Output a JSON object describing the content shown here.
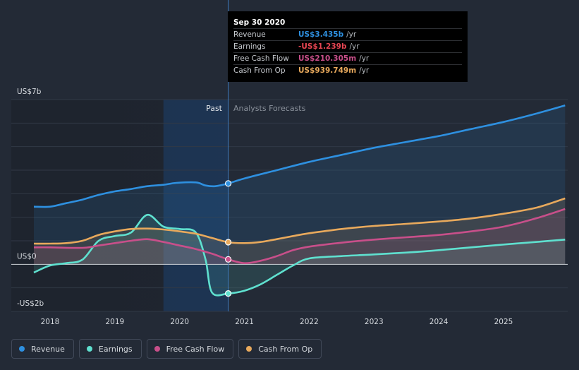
{
  "chart_data": {
    "type": "area",
    "x_unit": "year",
    "y_unit": "US$ billions",
    "ylim": [
      -2,
      7
    ],
    "y_ticks": [
      {
        "value": 7,
        "label": "US$7b"
      },
      {
        "value": 0,
        "label": "US$0"
      },
      {
        "value": -2,
        "label": "-US$2b"
      }
    ],
    "x_ticks": [
      "2018",
      "2019",
      "2020",
      "2021",
      "2022",
      "2023",
      "2024",
      "2025"
    ],
    "past_label": "Past",
    "forecast_label": "Analysts Forecasts",
    "divider_x": 2020.75,
    "highlight_start_x": 2019.75,
    "grid": "horizontal",
    "legend_position": "bottom",
    "series": [
      {
        "name": "Revenue",
        "color": "#2e90e0",
        "points": [
          [
            2017.75,
            2.45
          ],
          [
            2018.0,
            2.45
          ],
          [
            2018.25,
            2.6
          ],
          [
            2018.5,
            2.75
          ],
          [
            2018.75,
            2.95
          ],
          [
            2019.0,
            3.1
          ],
          [
            2019.25,
            3.2
          ],
          [
            2019.5,
            3.32
          ],
          [
            2019.75,
            3.38
          ],
          [
            2019.95,
            3.46
          ],
          [
            2020.25,
            3.48
          ],
          [
            2020.4,
            3.35
          ],
          [
            2020.55,
            3.32
          ],
          [
            2020.75,
            3.435
          ],
          [
            2021.0,
            3.65
          ],
          [
            2021.5,
            4.0
          ],
          [
            2022.0,
            4.35
          ],
          [
            2022.5,
            4.65
          ],
          [
            2023.0,
            4.95
          ],
          [
            2023.5,
            5.2
          ],
          [
            2024.0,
            5.45
          ],
          [
            2024.5,
            5.75
          ],
          [
            2025.0,
            6.05
          ],
          [
            2025.5,
            6.4
          ],
          [
            2025.95,
            6.75
          ]
        ]
      },
      {
        "name": "Earnings",
        "color": "#5fe0cf",
        "points": [
          [
            2017.75,
            -0.35
          ],
          [
            2018.0,
            -0.05
          ],
          [
            2018.25,
            0.05
          ],
          [
            2018.5,
            0.2
          ],
          [
            2018.75,
            1.0
          ],
          [
            2019.0,
            1.2
          ],
          [
            2019.25,
            1.35
          ],
          [
            2019.5,
            2.1
          ],
          [
            2019.75,
            1.6
          ],
          [
            2020.0,
            1.5
          ],
          [
            2020.25,
            1.35
          ],
          [
            2020.4,
            0.2
          ],
          [
            2020.5,
            -1.2
          ],
          [
            2020.75,
            -1.239
          ],
          [
            2021.0,
            -1.12
          ],
          [
            2021.25,
            -0.85
          ],
          [
            2021.5,
            -0.45
          ],
          [
            2021.75,
            -0.05
          ],
          [
            2022.0,
            0.25
          ],
          [
            2022.5,
            0.35
          ],
          [
            2023.0,
            0.42
          ],
          [
            2023.5,
            0.5
          ],
          [
            2024.0,
            0.6
          ],
          [
            2024.5,
            0.72
          ],
          [
            2025.0,
            0.84
          ],
          [
            2025.5,
            0.95
          ],
          [
            2025.95,
            1.05
          ]
        ]
      },
      {
        "name": "Free Cash Flow",
        "color": "#c84f8a",
        "points": [
          [
            2017.75,
            0.72
          ],
          [
            2018.0,
            0.72
          ],
          [
            2018.5,
            0.7
          ],
          [
            2018.75,
            0.8
          ],
          [
            2019.0,
            0.9
          ],
          [
            2019.25,
            1.0
          ],
          [
            2019.5,
            1.07
          ],
          [
            2019.75,
            0.95
          ],
          [
            2020.0,
            0.8
          ],
          [
            2020.25,
            0.65
          ],
          [
            2020.5,
            0.45
          ],
          [
            2020.75,
            0.21
          ],
          [
            2021.0,
            0.05
          ],
          [
            2021.25,
            0.15
          ],
          [
            2021.5,
            0.35
          ],
          [
            2021.75,
            0.6
          ],
          [
            2022.0,
            0.75
          ],
          [
            2022.5,
            0.92
          ],
          [
            2023.0,
            1.05
          ],
          [
            2023.5,
            1.15
          ],
          [
            2024.0,
            1.25
          ],
          [
            2024.5,
            1.4
          ],
          [
            2025.0,
            1.6
          ],
          [
            2025.5,
            1.95
          ],
          [
            2025.95,
            2.35
          ]
        ]
      },
      {
        "name": "Cash From Op",
        "color": "#e8a95c",
        "points": [
          [
            2017.75,
            0.88
          ],
          [
            2018.0,
            0.88
          ],
          [
            2018.25,
            0.9
          ],
          [
            2018.5,
            1.0
          ],
          [
            2018.75,
            1.25
          ],
          [
            2019.0,
            1.4
          ],
          [
            2019.25,
            1.5
          ],
          [
            2019.5,
            1.52
          ],
          [
            2019.75,
            1.48
          ],
          [
            2020.0,
            1.4
          ],
          [
            2020.25,
            1.3
          ],
          [
            2020.5,
            1.12
          ],
          [
            2020.75,
            0.94
          ],
          [
            2021.0,
            0.9
          ],
          [
            2021.25,
            0.95
          ],
          [
            2021.5,
            1.07
          ],
          [
            2021.75,
            1.2
          ],
          [
            2022.0,
            1.32
          ],
          [
            2022.5,
            1.5
          ],
          [
            2023.0,
            1.63
          ],
          [
            2023.5,
            1.72
          ],
          [
            2024.0,
            1.82
          ],
          [
            2024.5,
            1.95
          ],
          [
            2025.0,
            2.15
          ],
          [
            2025.5,
            2.4
          ],
          [
            2025.95,
            2.8
          ]
        ]
      }
    ]
  },
  "tooltip": {
    "title": "Sep 30 2020",
    "rows": [
      {
        "label": "Revenue",
        "value": "US$3.435b",
        "unit": "/yr",
        "color": "#2e90e0"
      },
      {
        "label": "Earnings",
        "value": "-US$1.239b",
        "unit": "/yr",
        "color": "#e64552"
      },
      {
        "label": "Free Cash Flow",
        "value": "US$210.305m",
        "unit": "/yr",
        "color": "#c84f8a"
      },
      {
        "label": "Cash From Op",
        "value": "US$939.749m",
        "unit": "/yr",
        "color": "#e8a95c"
      }
    ]
  },
  "legend": [
    {
      "label": "Revenue",
      "color": "#2e90e0"
    },
    {
      "label": "Earnings",
      "color": "#5fe0cf"
    },
    {
      "label": "Free Cash Flow",
      "color": "#c84f8a"
    },
    {
      "label": "Cash From Op",
      "color": "#e8a95c"
    }
  ]
}
